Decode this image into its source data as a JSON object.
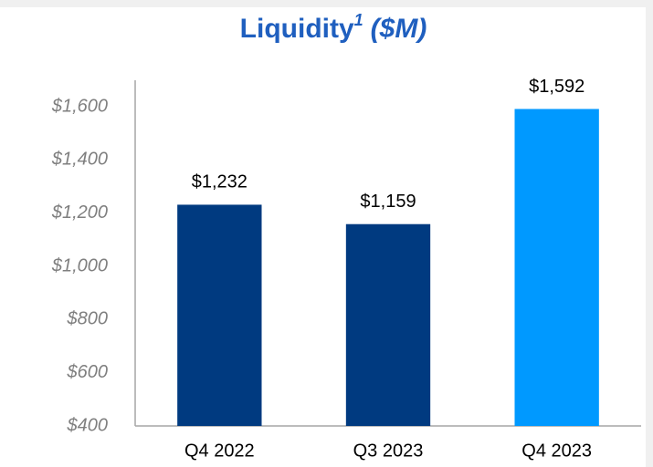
{
  "chart_data": {
    "type": "bar",
    "title": {
      "text": "Liquidity",
      "superscript": "1",
      "unit": "($M)"
    },
    "categories": [
      "Q4 2022",
      "Q3 2023",
      "Q4 2023"
    ],
    "values": [
      1232,
      1159,
      1592
    ],
    "value_labels": [
      "$1,232",
      "$1,159",
      "$1,592"
    ],
    "colors": [
      "#003a80",
      "#003a80",
      "#0099ff"
    ],
    "ylim": [
      400,
      1700
    ],
    "yticks": [
      {
        "value": 400,
        "label": "$400"
      },
      {
        "value": 600,
        "label": "$600"
      },
      {
        "value": 800,
        "label": "$800"
      },
      {
        "value": 1000,
        "label": "$1,000"
      },
      {
        "value": 1200,
        "label": "$1,200"
      },
      {
        "value": 1400,
        "label": "$1,400"
      },
      {
        "value": 1600,
        "label": "$1,600"
      }
    ],
    "grid": false
  }
}
